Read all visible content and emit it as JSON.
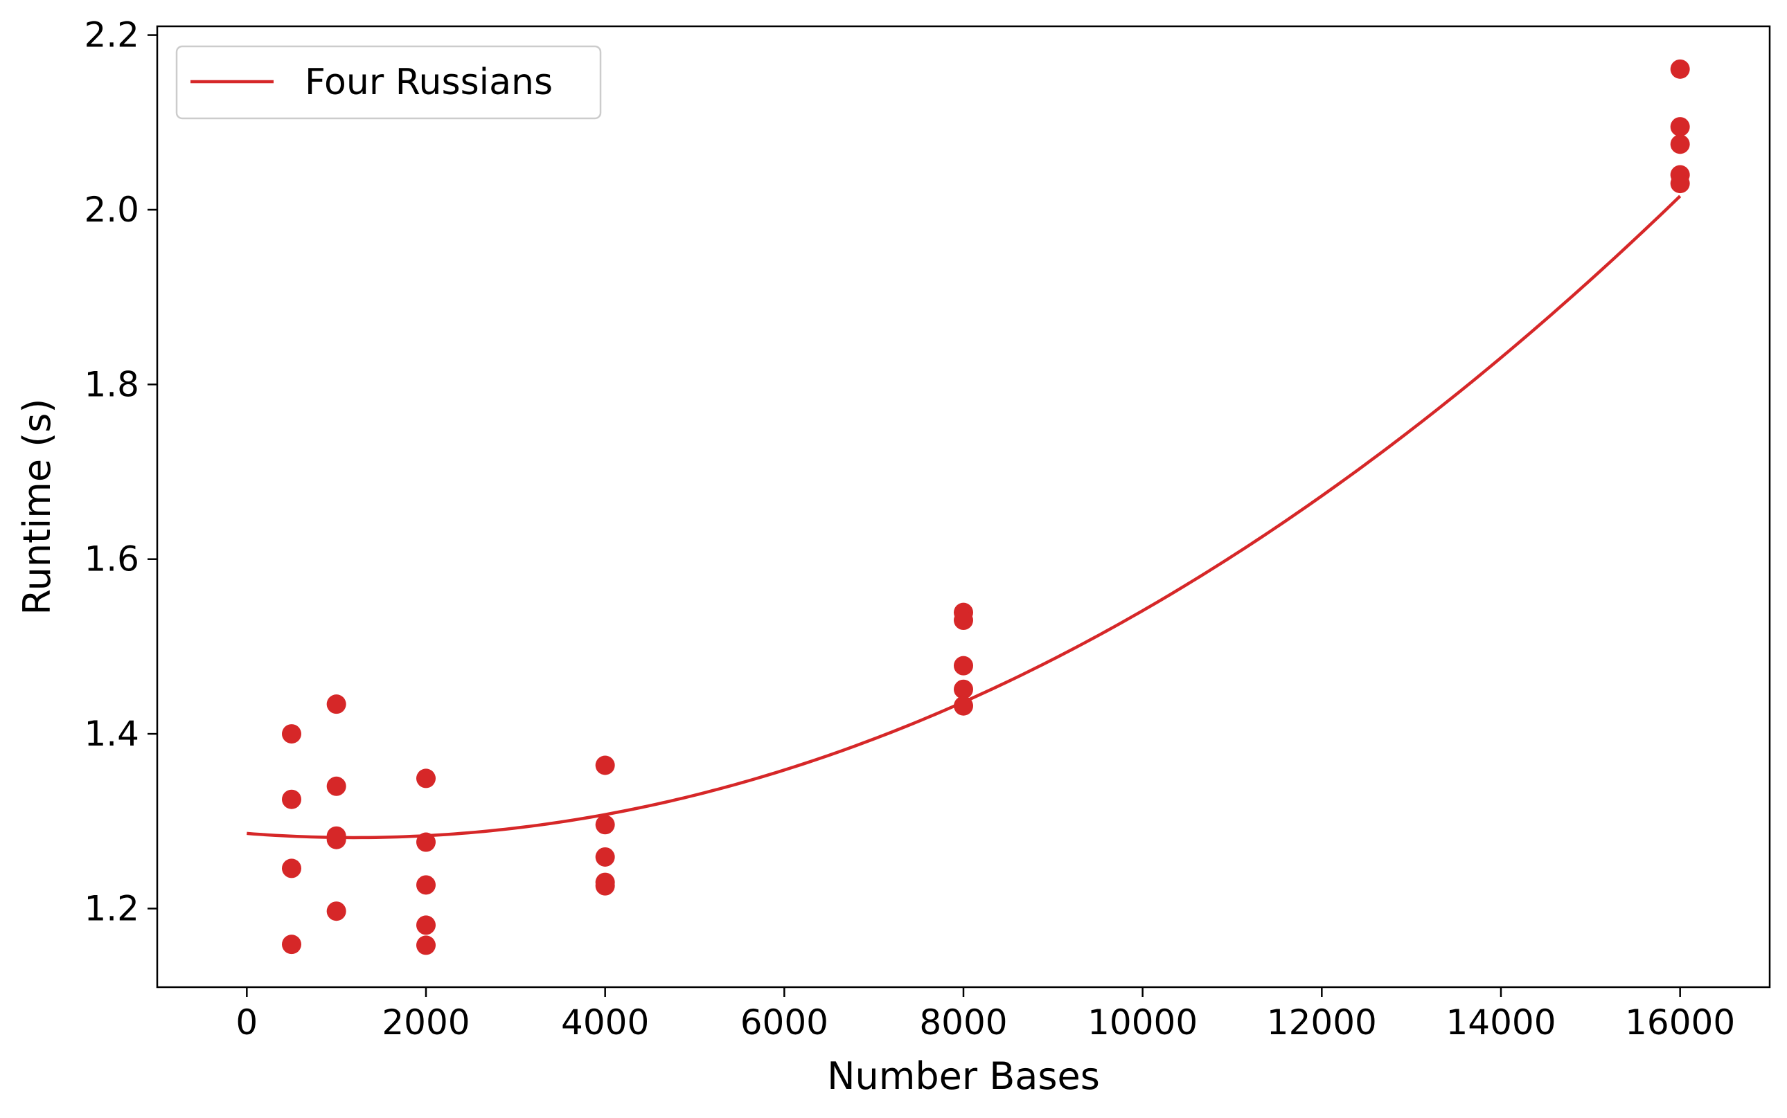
{
  "chart_data": {
    "type": "scatter",
    "title": "",
    "xlabel": "Number Bases",
    "ylabel": "Runtime (s)",
    "xlim": [
      -1000,
      17000
    ],
    "ylim": [
      1.11,
      2.21
    ],
    "xticks": [
      0,
      2000,
      4000,
      6000,
      8000,
      10000,
      12000,
      14000,
      16000
    ],
    "yticks": [
      1.2,
      1.4,
      1.6,
      1.8,
      2.0,
      2.2
    ],
    "xtick_labels": [
      "0",
      "2000",
      "4000",
      "6000",
      "8000",
      "10000",
      "12000",
      "14000",
      "16000"
    ],
    "ytick_labels": [
      "1.2",
      "1.4",
      "1.6",
      "1.8",
      "2.0",
      "2.2"
    ],
    "grid": false,
    "legend": {
      "position": "top-left",
      "entries": [
        "Four Russians"
      ]
    },
    "color": "#d62728",
    "points": [
      {
        "x": 500,
        "y": 1.4
      },
      {
        "x": 500,
        "y": 1.325
      },
      {
        "x": 500,
        "y": 1.246
      },
      {
        "x": 500,
        "y": 1.159
      },
      {
        "x": 1000,
        "y": 1.434
      },
      {
        "x": 1000,
        "y": 1.34
      },
      {
        "x": 1000,
        "y": 1.283
      },
      {
        "x": 1000,
        "y": 1.279
      },
      {
        "x": 1000,
        "y": 1.197
      },
      {
        "x": 2000,
        "y": 1.349
      },
      {
        "x": 2000,
        "y": 1.276
      },
      {
        "x": 2000,
        "y": 1.227
      },
      {
        "x": 2000,
        "y": 1.181
      },
      {
        "x": 2000,
        "y": 1.158
      },
      {
        "x": 4000,
        "y": 1.364
      },
      {
        "x": 4000,
        "y": 1.296
      },
      {
        "x": 4000,
        "y": 1.259
      },
      {
        "x": 4000,
        "y": 1.23
      },
      {
        "x": 4000,
        "y": 1.226
      },
      {
        "x": 8000,
        "y": 1.539
      },
      {
        "x": 8000,
        "y": 1.53
      },
      {
        "x": 8000,
        "y": 1.478
      },
      {
        "x": 8000,
        "y": 1.451
      },
      {
        "x": 8000,
        "y": 1.432
      },
      {
        "x": 16000,
        "y": 2.161
      },
      {
        "x": 16000,
        "y": 2.095
      },
      {
        "x": 16000,
        "y": 2.075
      },
      {
        "x": 16000,
        "y": 2.04
      },
      {
        "x": 16000,
        "y": 2.03
      }
    ],
    "fit": {
      "name": "Four Russians",
      "type": "quadratic",
      "coefficients": {
        "a": 3.35e-09,
        "b": -8e-06,
        "c": 1.286
      },
      "x_range": [
        0,
        16000
      ]
    }
  }
}
